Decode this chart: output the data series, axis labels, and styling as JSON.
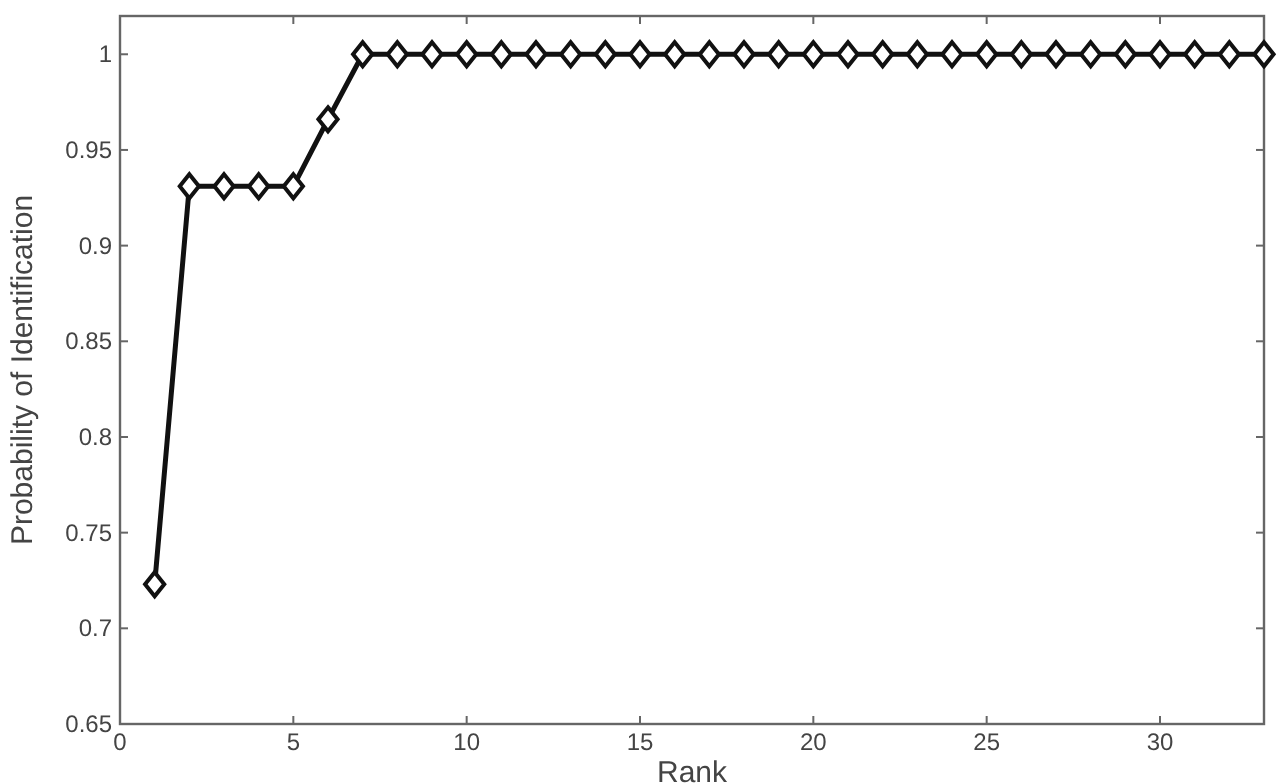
{
  "chart_data": {
    "type": "line",
    "xlabel": "Rank",
    "ylabel": "Probability of Identification",
    "x": [
      1,
      2,
      3,
      4,
      5,
      6,
      7,
      8,
      9,
      10,
      11,
      12,
      13,
      14,
      15,
      16,
      17,
      18,
      19,
      20,
      21,
      22,
      23,
      24,
      25,
      26,
      27,
      28,
      29,
      30,
      31,
      32,
      33
    ],
    "values": [
      0.723,
      0.931,
      0.931,
      0.931,
      0.931,
      0.966,
      1,
      1,
      1,
      1,
      1,
      1,
      1,
      1,
      1,
      1,
      1,
      1,
      1,
      1,
      1,
      1,
      1,
      1,
      1,
      1,
      1,
      1,
      1,
      1,
      1,
      1,
      1
    ],
    "color": "#111111",
    "marker": "diamond",
    "line_style": "solid",
    "xlim": [
      0,
      33
    ],
    "xticks": [
      0,
      5,
      10,
      15,
      20,
      25,
      30
    ],
    "ylim": [
      0.65,
      1.02
    ],
    "yticks": [
      0.65,
      0.7,
      0.75,
      0.8,
      0.85,
      0.9,
      0.95,
      1
    ],
    "grid": false
  }
}
